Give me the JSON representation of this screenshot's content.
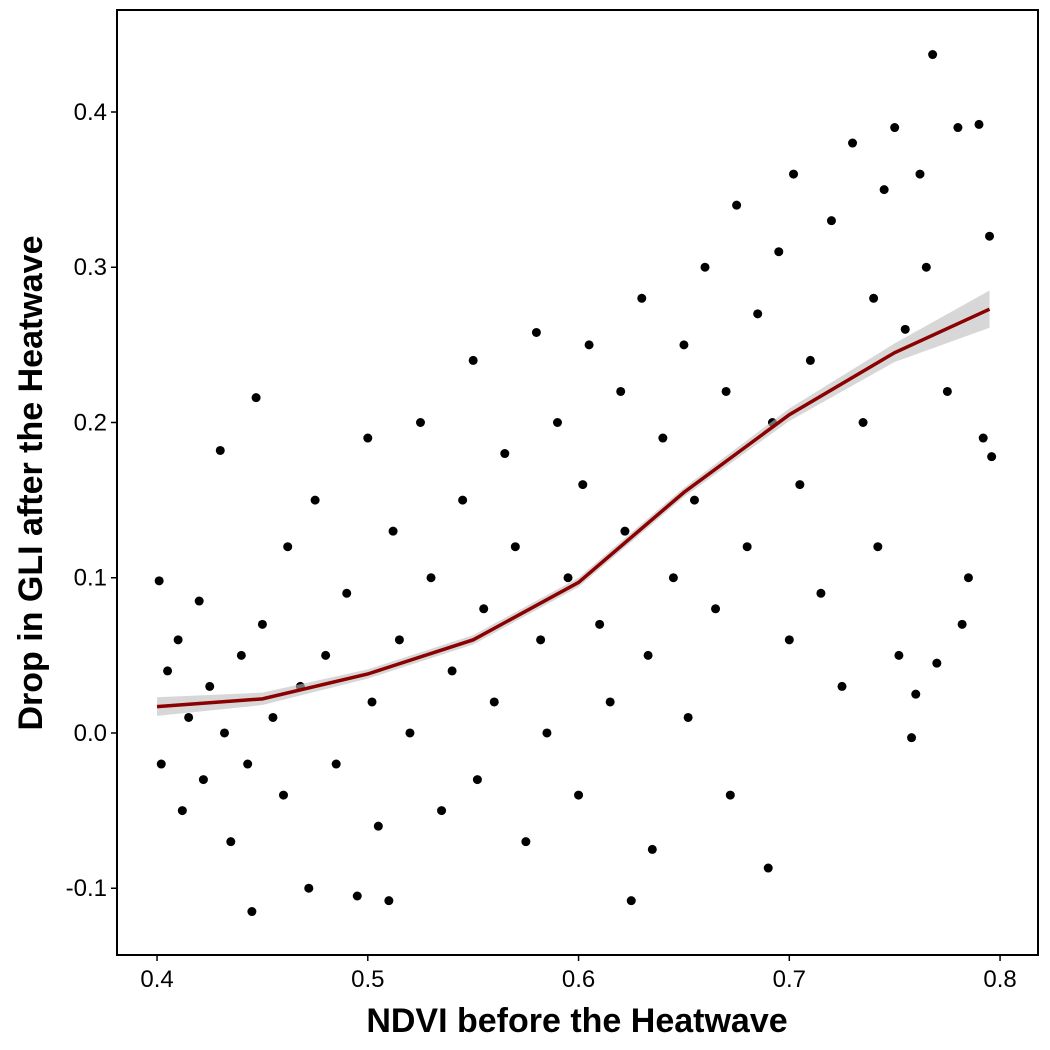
{
  "chart_data": {
    "type": "scatter",
    "xlabel": "NDVI before the Heatwave",
    "ylabel": "Drop in GLI after the Heatwave",
    "xlim": [
      0.381,
      0.818
    ],
    "ylim": [
      -0.143,
      0.4657
    ],
    "xticks": [
      0.4,
      0.5,
      0.6,
      0.7,
      0.8
    ],
    "yticks": [
      -0.1,
      {
        "value": 0,
        "label": "0.0"
      },
      0.1,
      0.2,
      0.3,
      0.4
    ],
    "grid": false,
    "series": [
      {
        "color": "#000000",
        "x": [
          0.401,
          0.402,
          0.405,
          0.41,
          0.412,
          0.415,
          0.42,
          0.422,
          0.425,
          0.43,
          0.432,
          0.435,
          0.44,
          0.443,
          0.445,
          0.447,
          0.45,
          0.455,
          0.46,
          0.462,
          0.468,
          0.472,
          0.475,
          0.48,
          0.485,
          0.49,
          0.495,
          0.5,
          0.502,
          0.505,
          0.51,
          0.512,
          0.515,
          0.52,
          0.525,
          0.53,
          0.535,
          0.54,
          0.545,
          0.55,
          0.552,
          0.555,
          0.56,
          0.565,
          0.57,
          0.575,
          0.58,
          0.582,
          0.585,
          0.59,
          0.595,
          0.6,
          0.602,
          0.605,
          0.61,
          0.615,
          0.62,
          0.622,
          0.625,
          0.63,
          0.633,
          0.635,
          0.64,
          0.645,
          0.65,
          0.652,
          0.655,
          0.66,
          0.665,
          0.67,
          0.672,
          0.675,
          0.68,
          0.685,
          0.69,
          0.692,
          0.695,
          0.7,
          0.702,
          0.705,
          0.71,
          0.715,
          0.72,
          0.725,
          0.73,
          0.735,
          0.74,
          0.742,
          0.745,
          0.75,
          0.752,
          0.755,
          0.758,
          0.76,
          0.762,
          0.765,
          0.768,
          0.77,
          0.775,
          0.78,
          0.782,
          0.785,
          0.79,
          0.792,
          0.795,
          0.796
        ],
        "values": [
          0.098,
          -0.02,
          0.04,
          0.06,
          -0.05,
          0.01,
          0.085,
          -0.03,
          0.03,
          0.182,
          0.0,
          -0.07,
          0.05,
          -0.02,
          -0.115,
          0.216,
          0.07,
          0.01,
          -0.04,
          0.12,
          0.03,
          -0.1,
          0.15,
          0.05,
          -0.02,
          0.09,
          -0.105,
          0.19,
          0.02,
          -0.06,
          -0.108,
          0.13,
          0.06,
          0.0,
          0.2,
          0.1,
          -0.05,
          0.04,
          0.15,
          0.24,
          -0.03,
          0.08,
          0.02,
          0.18,
          0.12,
          -0.07,
          0.258,
          0.06,
          0.0,
          0.2,
          0.1,
          -0.04,
          0.16,
          0.25,
          0.07,
          0.02,
          0.22,
          0.13,
          -0.108,
          0.28,
          0.05,
          -0.075,
          0.19,
          0.1,
          0.25,
          0.01,
          0.15,
          0.3,
          0.08,
          0.22,
          -0.04,
          0.34,
          0.12,
          0.27,
          -0.087,
          0.2,
          0.31,
          0.06,
          0.36,
          0.16,
          0.24,
          0.09,
          0.33,
          0.03,
          0.38,
          0.2,
          0.28,
          0.12,
          0.35,
          0.39,
          0.05,
          0.26,
          -0.003,
          0.025,
          0.36,
          0.3,
          0.437,
          0.045,
          0.22,
          0.39,
          0.07,
          0.1,
          0.392,
          0.19,
          0.32,
          0.178
        ]
      }
    ],
    "smooth": {
      "color": "#8b0000",
      "band_color": "#bdbdbd",
      "x": [
        0.4,
        0.45,
        0.5,
        0.55,
        0.6,
        0.65,
        0.7,
        0.75,
        0.795
      ],
      "values": [
        0.017,
        0.022,
        0.038,
        0.06,
        0.097,
        0.155,
        0.205,
        0.245,
        0.273
      ],
      "lower": [
        0.011,
        0.018,
        0.035,
        0.057,
        0.094,
        0.152,
        0.201,
        0.239,
        0.261
      ],
      "upper": [
        0.023,
        0.026,
        0.041,
        0.063,
        0.1,
        0.158,
        0.209,
        0.251,
        0.285
      ]
    }
  }
}
